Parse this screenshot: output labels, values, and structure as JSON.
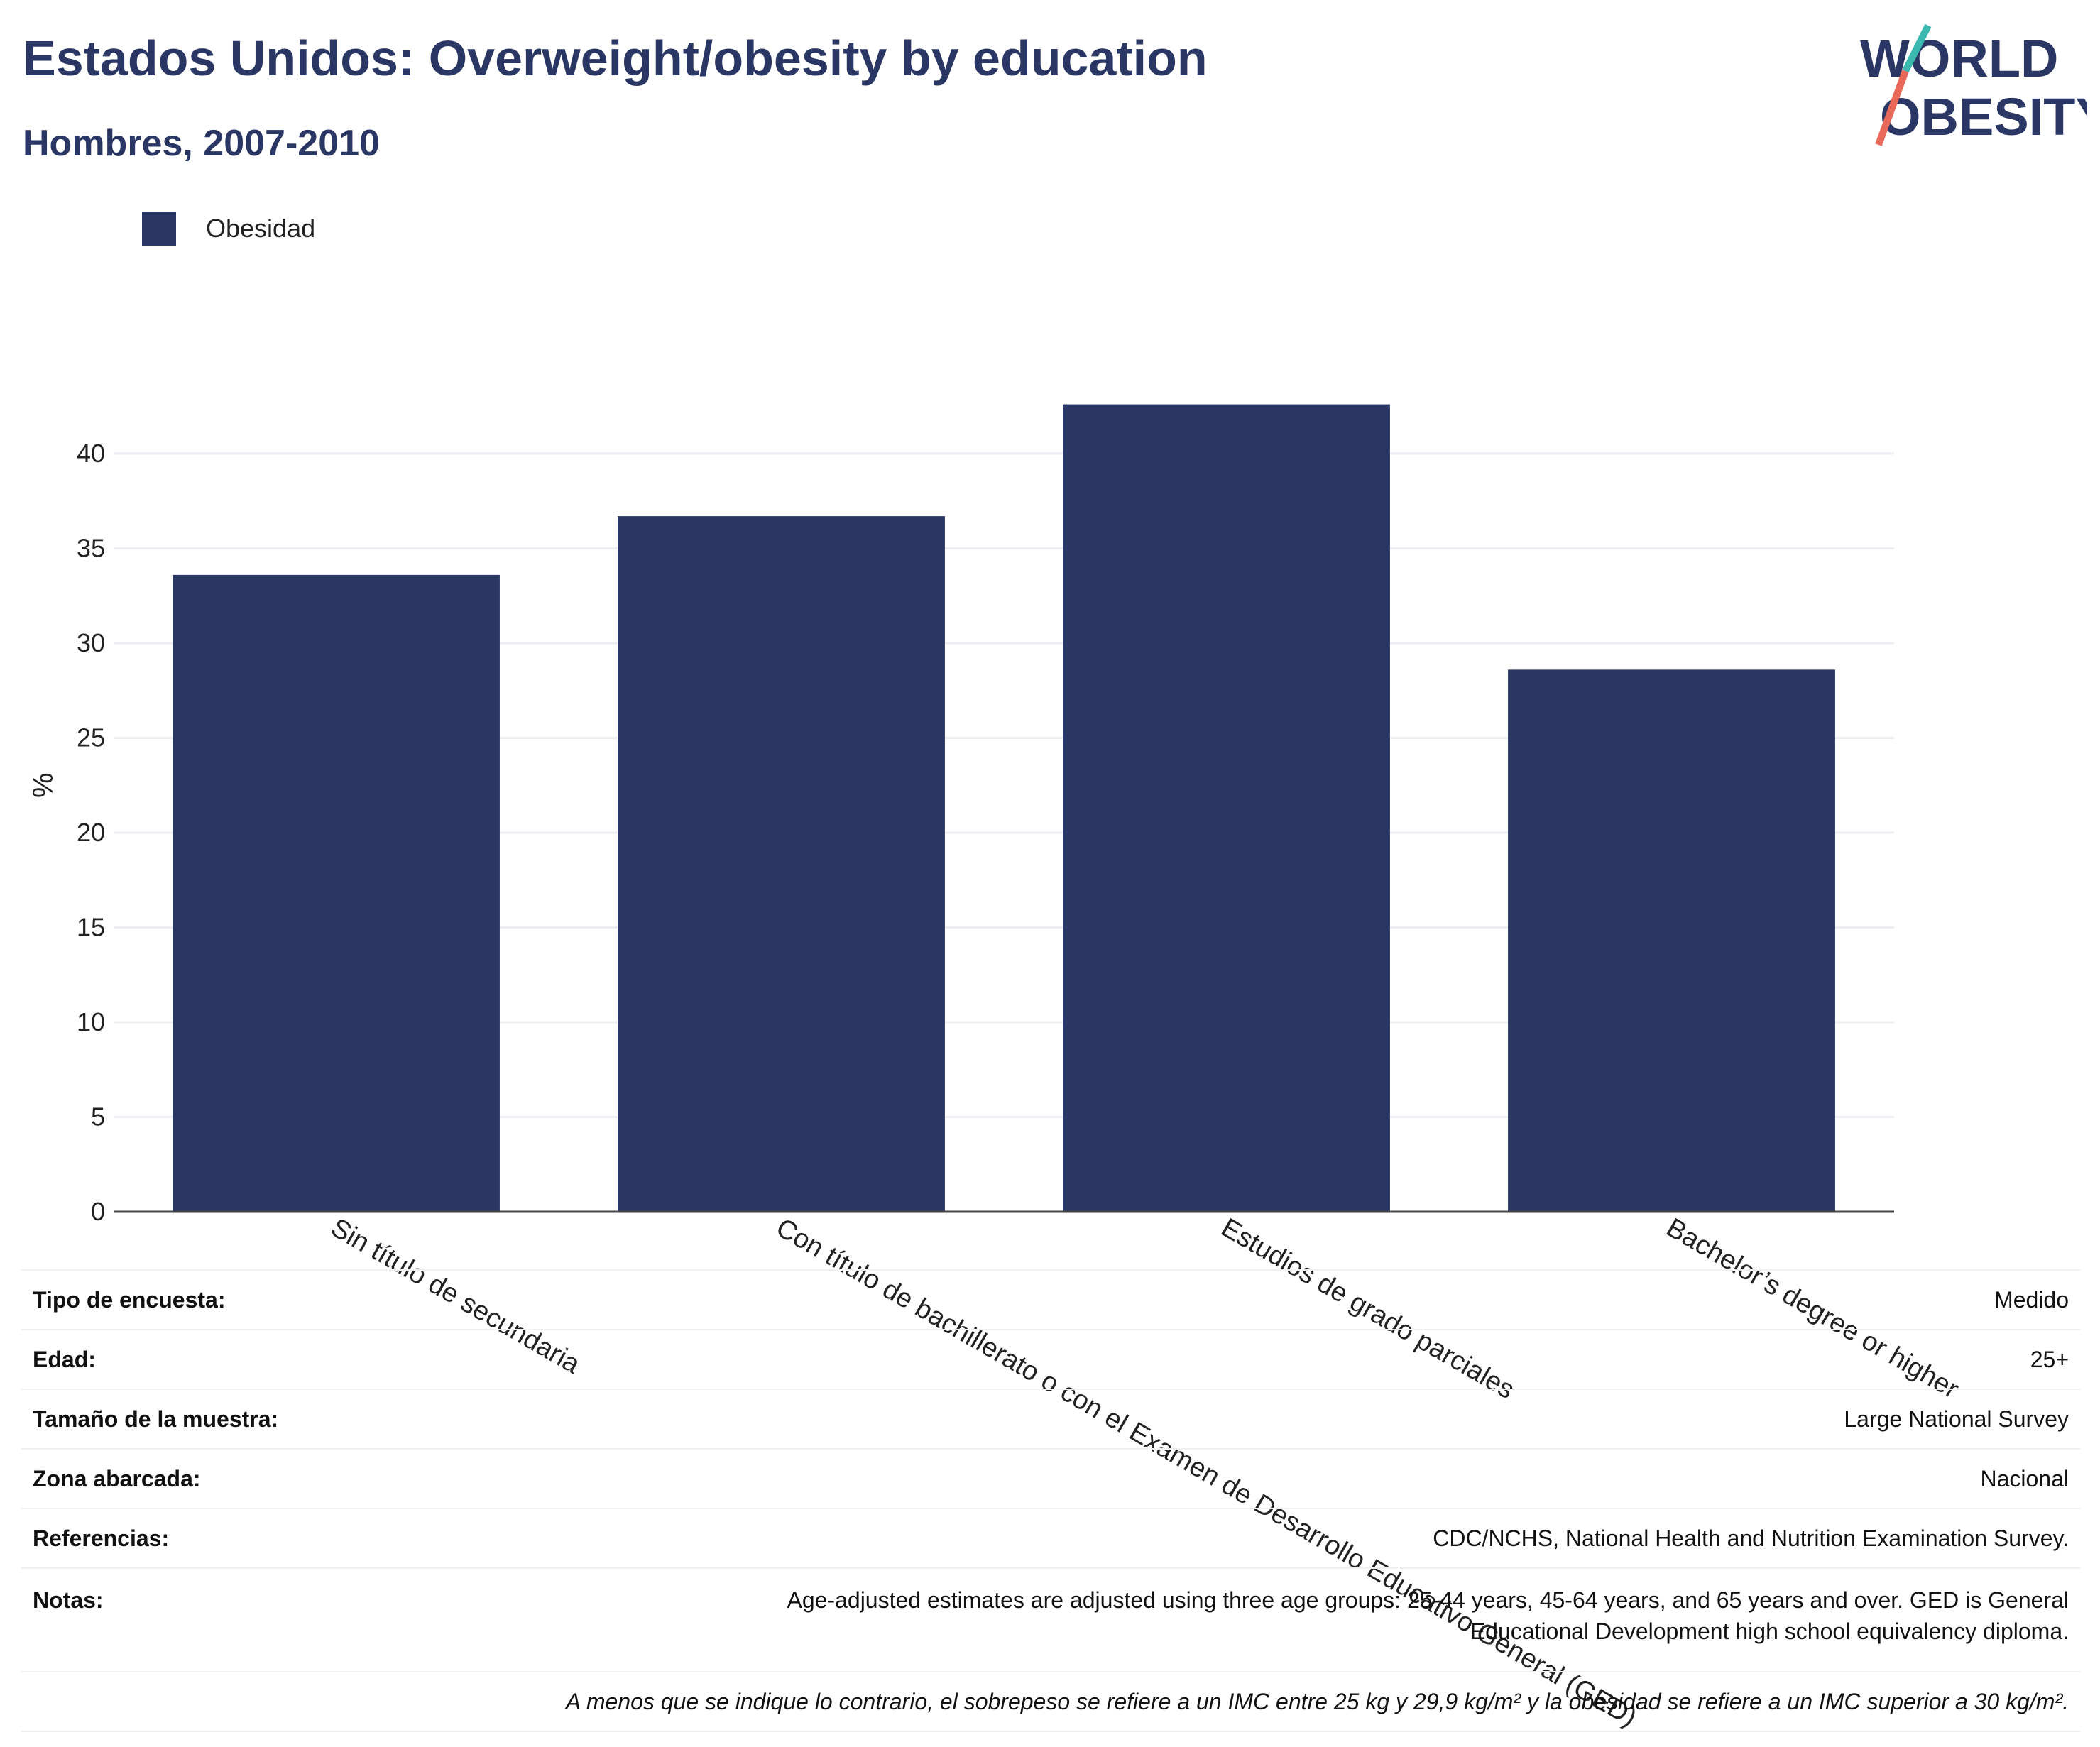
{
  "header": {
    "title": "Estados Unidos: Overweight/obesity by education",
    "subtitle": "Hombres, 2007-2010"
  },
  "logo": {
    "line1": "WORLD",
    "line2": "OBESITY"
  },
  "colors": {
    "bar": "#2a3663",
    "text": "#2a3663",
    "grid": "#ebedf3",
    "logo_teal": "#3bb8b0",
    "logo_red": "#e8695a"
  },
  "legend": {
    "items": [
      {
        "label": "Obesidad",
        "color": "#2a3663"
      }
    ]
  },
  "chart_data": {
    "type": "bar",
    "categories": [
      "Sin título de secundaria",
      "Con título de bachillerato o con el Examen de Desarrollo Educativo General (GED)",
      "Estudios de grado parciales",
      "Bachelor’s degree or higher"
    ],
    "series": [
      {
        "name": "Obesidad",
        "values": [
          33.6,
          36.7,
          42.6,
          28.6
        ]
      }
    ],
    "ylabel": "%",
    "ylim": [
      0,
      45
    ],
    "yticks": [
      0,
      5,
      10,
      15,
      20,
      25,
      30,
      35,
      40
    ],
    "grid": true,
    "legend_position": "top-left"
  },
  "info": {
    "rows": [
      {
        "label": "Tipo de encuesta:",
        "value": "Medido"
      },
      {
        "label": "Edad:",
        "value": "25+"
      },
      {
        "label": "Tamaño de la muestra:",
        "value": "Large National Survey"
      },
      {
        "label": "Zona abarcada:",
        "value": "Nacional"
      },
      {
        "label": "Referencias:",
        "value": "CDC/NCHS, National Health and Nutrition Examination Survey."
      }
    ],
    "notes_label": "Notas:",
    "notes_line1": "Age-adjusted estimates are adjusted using three age groups: 25-44 years, 45-64 years, and 65 years and over. GED is General",
    "notes_line2": "Educational Development high school equivalency diploma.",
    "footnote": "A menos que se indique lo contrario, el sobrepeso se refiere a un IMC entre 25 kg y 29,9 kg/m² y la obesidad se refiere a un IMC superior a 30 kg/m²."
  }
}
